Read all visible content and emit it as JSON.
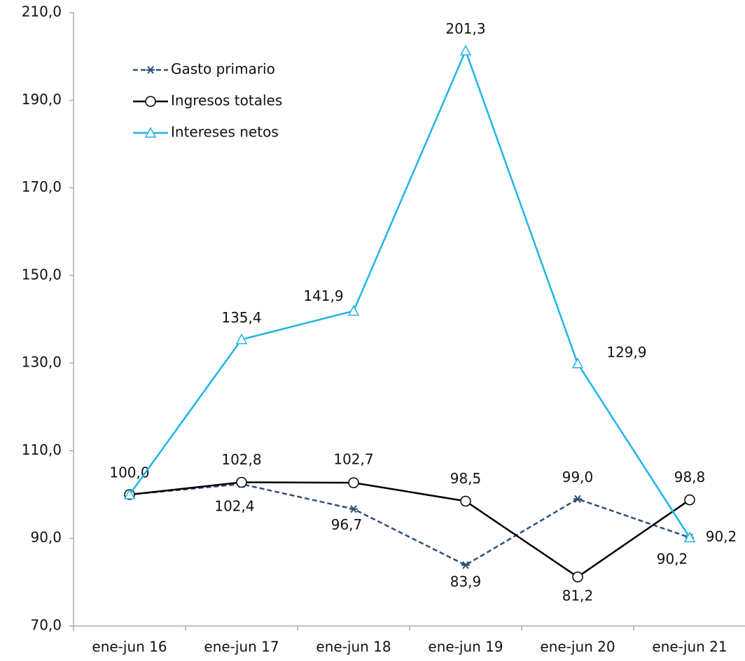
{
  "chart_data": {
    "type": "line",
    "categories": [
      "ene-jun 16",
      "ene-jun 17",
      "ene-jun 18",
      "ene-jun 19",
      "ene-jun 20",
      "ene-jun 21"
    ],
    "series": [
      {
        "name": "Gasto primario",
        "color": "#2f4f7f",
        "dash": true,
        "marker": "asterisk",
        "values": [
          100.0,
          102.4,
          96.7,
          83.9,
          99.0,
          90.2
        ],
        "value_labels": [
          null,
          "102,4",
          "96,7",
          "83,9",
          "99,0",
          "90,2"
        ]
      },
      {
        "name": "Ingresos totales",
        "color": "#000000",
        "dash": false,
        "marker": "circle",
        "values": [
          100.0,
          102.8,
          102.7,
          98.5,
          81.2,
          98.8
        ],
        "value_labels": [
          "100,0",
          "102,8",
          "102,7",
          "98,5",
          "81,2",
          "98,8"
        ]
      },
      {
        "name": "Intereses netos",
        "color": "#1fb4e6",
        "dash": false,
        "marker": "triangle",
        "values": [
          100.0,
          135.4,
          141.9,
          201.3,
          129.9,
          90.2
        ],
        "value_labels": [
          null,
          "135,4",
          "141,9",
          "201,3",
          "129,9",
          "90,2"
        ]
      }
    ],
    "ylim": [
      70,
      210
    ],
    "yticks": [
      {
        "value": 70,
        "label": "70,0"
      },
      {
        "value": 90,
        "label": "90,0"
      },
      {
        "value": 110,
        "label": "110,0"
      },
      {
        "value": 130,
        "label": "130,0"
      },
      {
        "value": 150,
        "label": "150,0"
      },
      {
        "value": 170,
        "label": "170,0"
      },
      {
        "value": 190,
        "label": "190,0"
      },
      {
        "value": 210,
        "label": "210,0"
      }
    ],
    "grid": false,
    "legend": "upper-left"
  }
}
